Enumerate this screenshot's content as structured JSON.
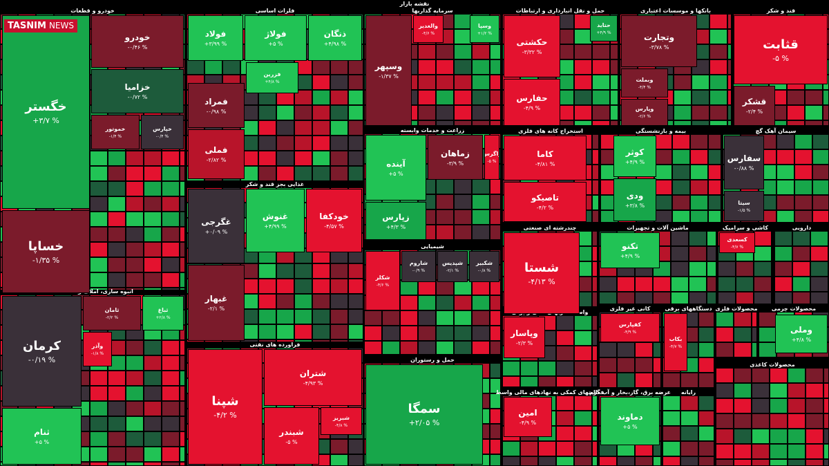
{
  "title": "نقشه بازار",
  "logo": {
    "brand": "TASNIM",
    "suffix": "NEWS"
  },
  "sectors": [
    {
      "title": "خودرو و قطعات",
      "tiles": [
        {
          "name": "خگستر",
          "change": "+۳/۷ %"
        },
        {
          "name": "خساپا",
          "change": "-۱/۳۵ %"
        },
        {
          "name": "خودرو",
          "change": "-۰/۴۶ %"
        },
        {
          "name": "خزامیا",
          "change": "-۰/۷۲ %"
        },
        {
          "name": "خموتور",
          "change": "-۱/۴ %"
        },
        {
          "name": "خپارس",
          "change": "-۰/۴ %"
        }
      ]
    },
    {
      "title": "انبوه سازی، املاک و مستغلات",
      "tiles": [
        {
          "name": "کرمان",
          "change": "-۰/۱۹ %"
        },
        {
          "name": "ثنام",
          "change": "+۵ %"
        },
        {
          "name": "ثامان",
          "change": "-۲/۲ %"
        },
        {
          "name": "ثباغ",
          "change": "+۲/۸ %"
        },
        {
          "name": "وآذر",
          "change": "-۱/۸ %"
        }
      ]
    },
    {
      "title": "فلزات اساسی",
      "tiles": [
        {
          "name": "فولاد",
          "change": "+۳/۹۹ %"
        },
        {
          "name": "فولاژ",
          "change": "+۵ %"
        },
        {
          "name": "ذنگان",
          "change": "+۴/۹۸ %"
        },
        {
          "name": "فمراد",
          "change": "-۰/۹۸ %"
        },
        {
          "name": "فملی",
          "change": "-۲/۸۲ %"
        },
        {
          "name": "فزرین",
          "change": "+۴/۸ %"
        }
      ]
    },
    {
      "title": "غذایی بجز قند و شکر",
      "tiles": [
        {
          "name": "غگرجی",
          "change": "+۰/۰۹ %"
        },
        {
          "name": "غنوش",
          "change": "+۴/۹۹ %"
        },
        {
          "name": "خودکفا",
          "change": "-۴/۵۷ %"
        },
        {
          "name": "غبهار",
          "change": "-۲/۱ %"
        }
      ]
    },
    {
      "title": "فراورده های نفتی",
      "tiles": [
        {
          "name": "شپنا",
          "change": "-۴/۲ %"
        },
        {
          "name": "شتران",
          "change": "-۴/۹۳ %"
        },
        {
          "name": "شبندر",
          "change": "-۵ %"
        },
        {
          "name": "شبریز",
          "change": "-۴/۸ %"
        }
      ]
    },
    {
      "title": "سرمایه گذاریها",
      "tiles": [
        {
          "name": "وسپهر",
          "change": "-۱/۳۷ %"
        },
        {
          "name": "والغدیر",
          "change": "-۴/۶ %"
        },
        {
          "name": "وسپا",
          "change": "+۱/۲ %"
        }
      ]
    },
    {
      "title": "زراعت و خدمات وابسته",
      "tiles": [
        {
          "name": "آینده",
          "change": "+۵ %"
        },
        {
          "name": "زماهان",
          "change": "-۳/۹ %"
        },
        {
          "name": "زپارس",
          "change": "+۴/۳ %"
        },
        {
          "name": "زاگرس",
          "change": "-۵ %"
        }
      ]
    },
    {
      "title": "شیمیایی",
      "tiles": [
        {
          "name": "شکلر",
          "change": "-۴/۶ %"
        },
        {
          "name": "شاروم",
          "change": "-۰/۹ %"
        },
        {
          "name": "شپدیس",
          "change": "-۲/۱ %"
        },
        {
          "name": "شکبیر",
          "change": "-۰/۸ %"
        }
      ]
    },
    {
      "title": "حمل و رستوران",
      "tiles": [
        {
          "name": "سمگا",
          "change": "+۲/۰۵ %"
        }
      ]
    },
    {
      "title": "حمل و نقل انبارداری و ارتباطات",
      "tiles": [
        {
          "name": "حکشتی",
          "change": "-۳/۳۲ %"
        },
        {
          "name": "حفارس",
          "change": "-۴/۹ %"
        },
        {
          "name": "حتاید",
          "change": "+۴/۹ %"
        }
      ]
    },
    {
      "title": "بانکها و موسسات اعتباری",
      "tiles": [
        {
          "name": "وتجارت",
          "change": "-۳/۷۸ %"
        },
        {
          "name": "وبملت",
          "change": "-۴/۴ %"
        },
        {
          "name": "وپارس",
          "change": "-۲/۶ %"
        }
      ]
    },
    {
      "title": "قند و شکر",
      "tiles": [
        {
          "name": "قثابت",
          "change": "-۵ %"
        },
        {
          "name": "قشکر",
          "change": "-۲/۴ %"
        }
      ]
    },
    {
      "title": "استخراج کانه های فلزی",
      "tiles": [
        {
          "name": "کاما",
          "change": "-۴/۸۱ %"
        },
        {
          "name": "تاصیکو",
          "change": "-۴/۲ %"
        }
      ]
    },
    {
      "title": "بیمه و بازنشستگی",
      "tiles": [
        {
          "name": "کوثر",
          "change": "+۴/۹ %"
        },
        {
          "name": "ودی",
          "change": "+۳/۸ %"
        }
      ]
    },
    {
      "title": "سیمان آهک گچ",
      "tiles": [
        {
          "name": "سفارس",
          "change": "-۰/۸۸ %"
        },
        {
          "name": "سیتا",
          "change": "-۱/۵ %"
        }
      ]
    },
    {
      "title": "چندرشته ای صنعتی",
      "tiles": [
        {
          "name": "شستا",
          "change": "-۴/۱۳ %"
        }
      ]
    },
    {
      "title": "ماشین آلات و تجهیزات",
      "tiles": [
        {
          "name": "تکنو",
          "change": "+۴/۹ %"
        }
      ]
    },
    {
      "title": "کاشی و سرامیک",
      "tiles": [
        {
          "name": "کسعدی",
          "change": "-۴/۷ %"
        }
      ]
    },
    {
      "title": "دارویی",
      "tiles": []
    },
    {
      "title": "واسطه گریهای مالی و پولی",
      "tiles": [
        {
          "name": "وپاسار",
          "change": "-۲/۳ %"
        }
      ]
    },
    {
      "title": "کانی غیر فلزی",
      "tiles": [
        {
          "name": "کفپارس",
          "change": "-۴/۹ %"
        }
      ]
    },
    {
      "title": "دستگاههای برقی",
      "tiles": [
        {
          "name": "بکاب",
          "change": "-۴/۷ %"
        }
      ]
    },
    {
      "title": "محصولات فلزی",
      "tiles": []
    },
    {
      "title": "محصولات چرمی",
      "tiles": [
        {
          "name": "وملی",
          "change": "+۴/۸ %"
        }
      ]
    },
    {
      "title": "فعالیتهای کمکی به نهادهای مالی واسط",
      "tiles": [
        {
          "name": "امین",
          "change": "-۴/۹ %"
        }
      ]
    },
    {
      "title": "عرضه برق، گاز،بخار و آب گرم",
      "tiles": [
        {
          "name": "دماوند",
          "change": "+۵ %"
        }
      ]
    },
    {
      "title": "رایانه",
      "tiles": []
    },
    {
      "title": "محصولات کاغذی",
      "tiles": []
    }
  ]
}
